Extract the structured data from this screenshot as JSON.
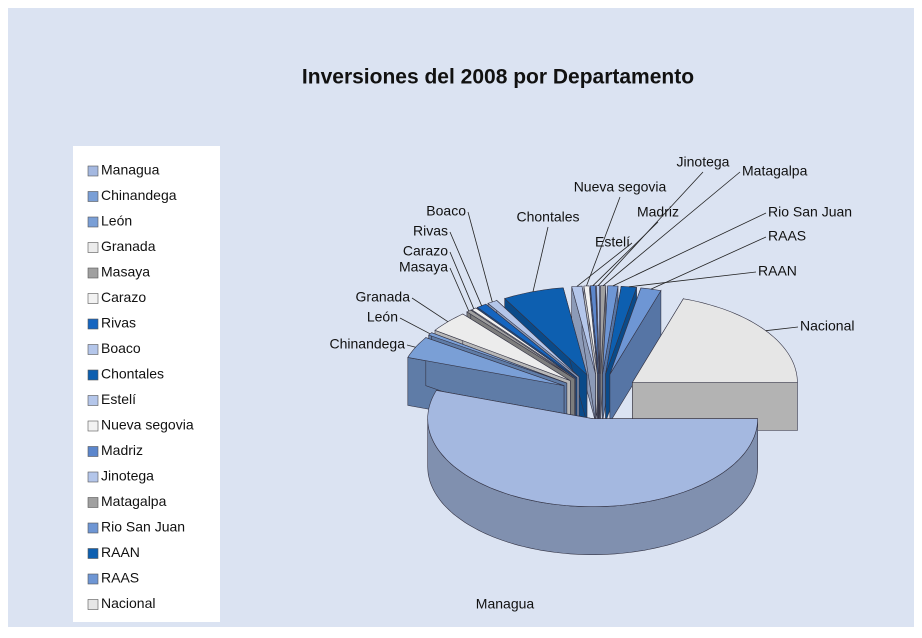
{
  "chart_data": {
    "type": "pie",
    "title": "Inversiones del 2008 por Departamento",
    "categories": [
      "Managua",
      "Chinandega",
      "León",
      "Granada",
      "Masaya",
      "Carazo",
      "Rivas",
      "Boaco",
      "Chontales",
      "Estelí",
      "Nueva segovia",
      "Madriz",
      "Jinotega",
      "Matagalpa",
      "Rio San Juan",
      "RAAN",
      "RAAS",
      "Nacional"
    ],
    "values": [
      55.2,
      4,
      0.5,
      4,
      0.5,
      0.5,
      1,
      1,
      6,
      1,
      0.5,
      0.5,
      0.3,
      0.5,
      1,
      1.5,
      2,
      20
    ],
    "colors": [
      "#a4b8e0",
      "#7a9fd6",
      "#7a9fd6",
      "#ececec",
      "#a0a0a0",
      "#f2f2f2",
      "#1565c0",
      "#b4c6ea",
      "#0d5fb0",
      "#b4c6ea",
      "#f2f2f2",
      "#5b86cc",
      "#b4c6ea",
      "#a0a0a0",
      "#6e96d4",
      "#0d5fb0",
      "#6e96d4",
      "#e6e6e6"
    ],
    "legend": "left"
  }
}
